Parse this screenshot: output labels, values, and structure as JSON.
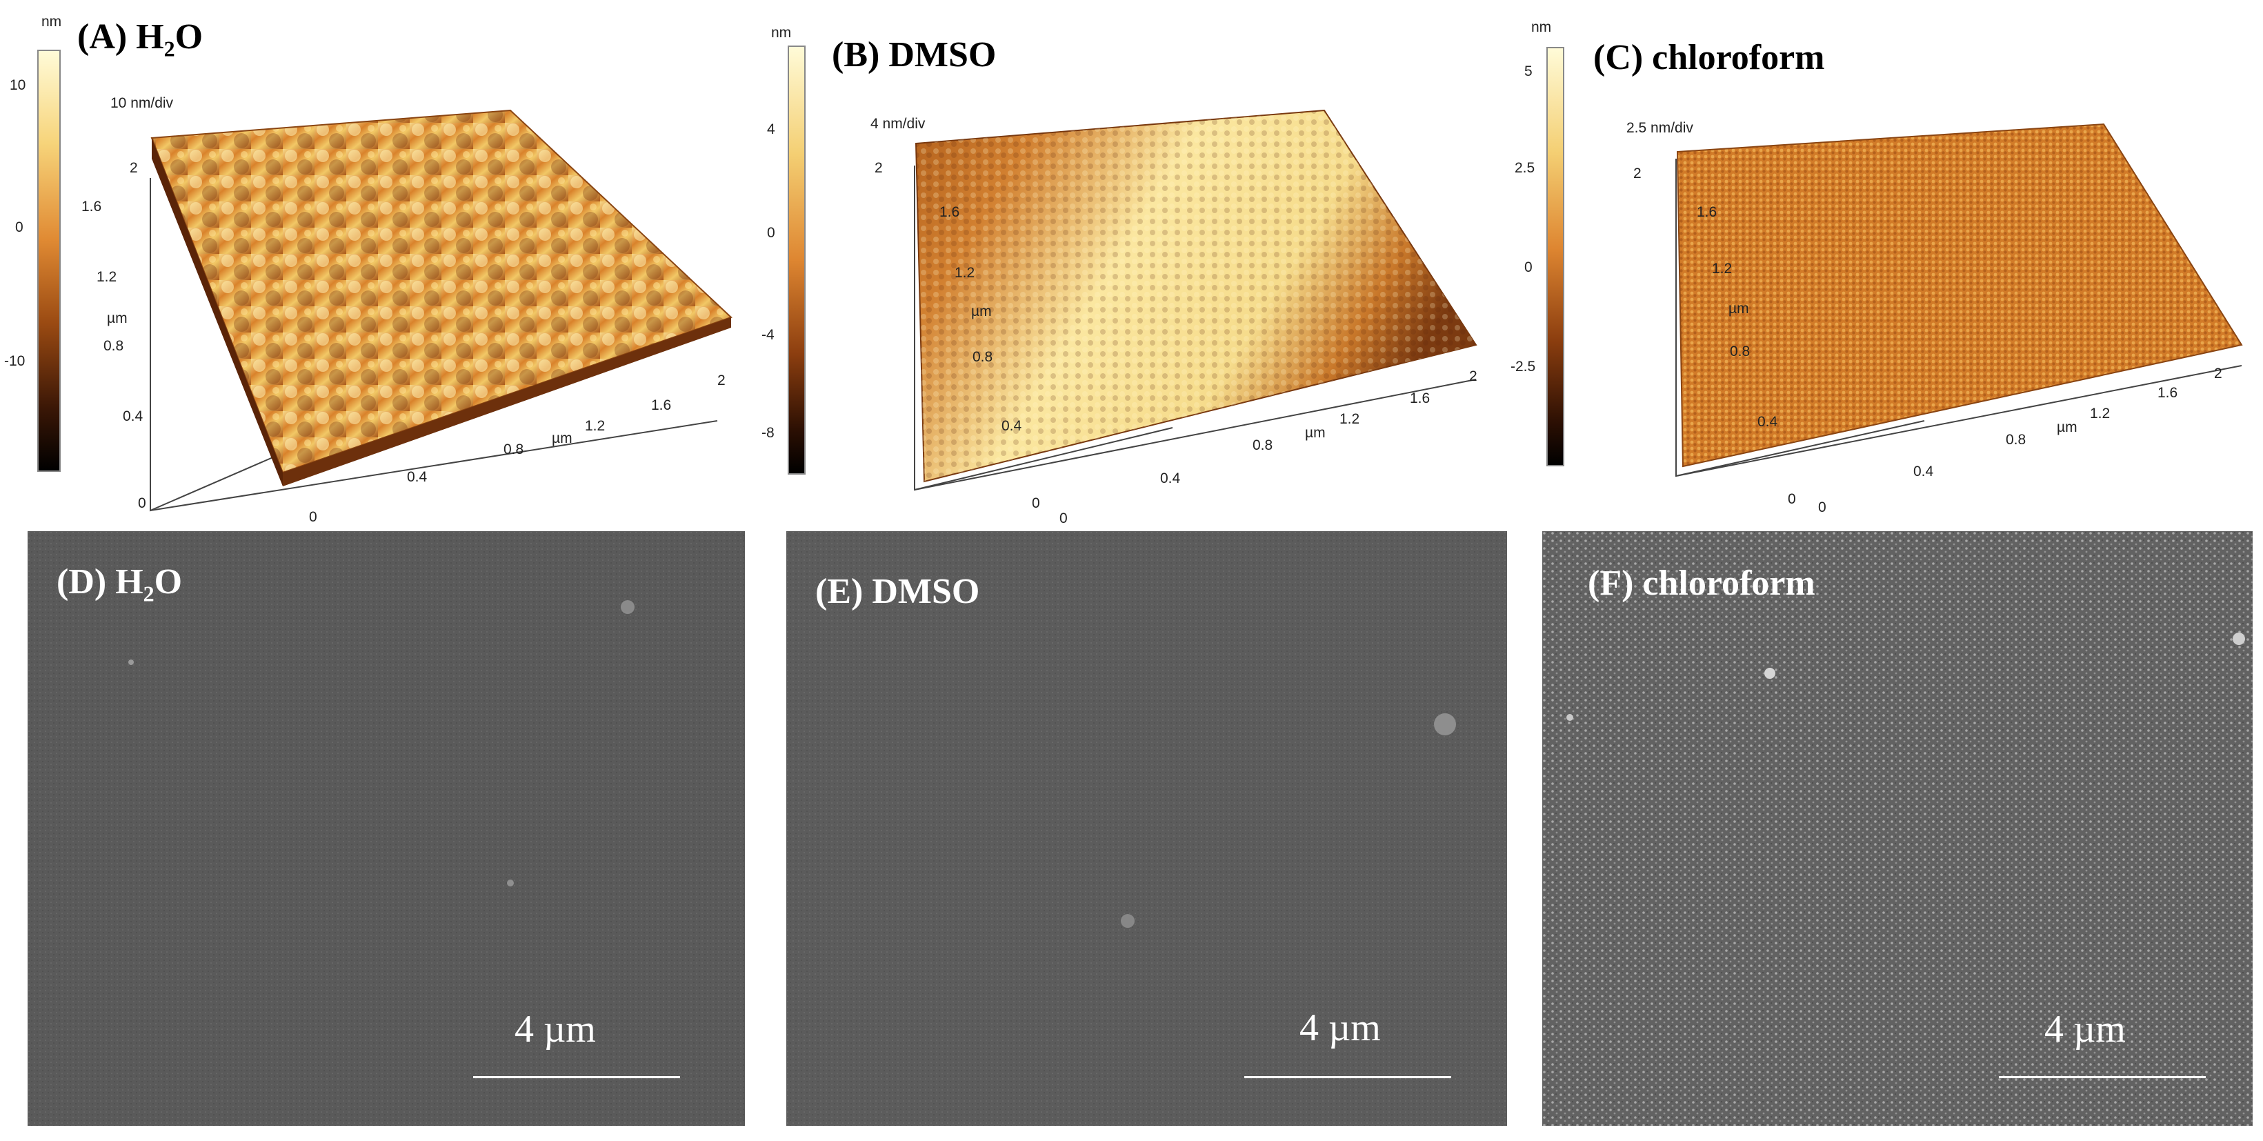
{
  "afm_panels": [
    {
      "label_prefix": "(A) H",
      "label_sub": "2",
      "label_suffix": "O",
      "unit": "nm",
      "scale_text": "10 nm/div",
      "colorbar_ticks": [
        "10",
        "0",
        "-10"
      ],
      "axis_label": "µm",
      "y_ticks": [
        "0",
        "0.4",
        "0.8",
        "1.2",
        "1.6",
        "2"
      ],
      "x_ticks": [
        "0",
        "0.4",
        "0.8",
        "1.2",
        "1.6",
        "2"
      ]
    },
    {
      "label_prefix": "(B) DMSO",
      "label_sub": "",
      "label_suffix": "",
      "unit": "nm",
      "scale_text": "4 nm/div",
      "colorbar_ticks": [
        "4",
        "0",
        "-4",
        "-8"
      ],
      "axis_label": "µm",
      "y_ticks": [
        "0",
        "0.4",
        "0.8",
        "1.2",
        "1.6",
        "2"
      ],
      "x_ticks": [
        "0",
        "0.4",
        "0.8",
        "1.2",
        "1.6",
        "2"
      ]
    },
    {
      "label_prefix": "(C) chloroform",
      "label_sub": "",
      "label_suffix": "",
      "unit": "nm",
      "scale_text": "2.5 nm/div",
      "colorbar_ticks": [
        "5",
        "2.5",
        "0",
        "-2.5"
      ],
      "axis_label": "µm",
      "y_ticks": [
        "0",
        "0.4",
        "0.8",
        "1.2",
        "1.6",
        "2"
      ],
      "x_ticks": [
        "0",
        "0.4",
        "0.8",
        "1.2",
        "1.6",
        "2"
      ]
    }
  ],
  "sem_panels": [
    {
      "label_prefix": "(D) H",
      "label_sub": "2",
      "label_suffix": "O",
      "scale_bar": "4 µm"
    },
    {
      "label_prefix": "(E) DMSO",
      "label_sub": "",
      "label_suffix": "",
      "scale_bar": "4 µm"
    },
    {
      "label_prefix": "(F) chloroform",
      "label_sub": "",
      "label_suffix": "",
      "scale_bar": "4 µm"
    }
  ],
  "colors": {
    "afm_dark": "#3a1a05",
    "afm_mid": "#d9822b",
    "afm_light": "#fff2b0",
    "sem_gray": "#5a5a5a"
  }
}
